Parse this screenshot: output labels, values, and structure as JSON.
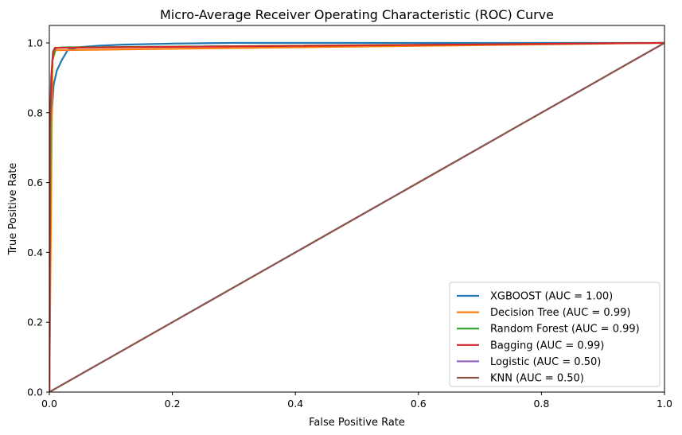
{
  "chart_data": {
    "type": "line",
    "title": "Micro-Average Receiver Operating Characteristic (ROC) Curve",
    "xlabel": "False Positive Rate",
    "ylabel": "True Positive Rate",
    "xlim": [
      0,
      1
    ],
    "ylim": [
      0,
      1.05
    ],
    "xticks": [
      0.0,
      0.2,
      0.4,
      0.6,
      0.8,
      1.0
    ],
    "yticks": [
      0.0,
      0.2,
      0.4,
      0.6,
      0.8,
      1.0
    ],
    "xtick_labels": [
      "0.0",
      "0.2",
      "0.4",
      "0.6",
      "0.8",
      "1.0"
    ],
    "ytick_labels": [
      "0.0",
      "0.2",
      "0.4",
      "0.6",
      "0.8",
      "1.0"
    ],
    "grid": false,
    "legend_position": "bottom-right",
    "series": [
      {
        "name": "XGBOOST (AUC = 1.00)",
        "color": "#1f77b4",
        "x": [
          0,
          0.001,
          0.002,
          0.004,
          0.007,
          0.012,
          0.02,
          0.03,
          0.05,
          0.08,
          0.12,
          0.2,
          0.3,
          0.5,
          1.0
        ],
        "y": [
          0,
          0.25,
          0.6,
          0.8,
          0.88,
          0.92,
          0.95,
          0.98,
          0.988,
          0.992,
          0.995,
          0.998,
          1.0,
          1.0,
          1.0
        ]
      },
      {
        "name": "Decision Tree (AUC = 0.99)",
        "color": "#ff7f0e",
        "x": [
          0,
          0.005,
          0.01,
          1.0
        ],
        "y": [
          0,
          0.95,
          0.979,
          1.0
        ]
      },
      {
        "name": "Random Forest (AUC = 0.99)",
        "color": "#2ca02c",
        "x": [
          0,
          0.002,
          0.005,
          0.01,
          0.02,
          1.0
        ],
        "y": [
          0,
          0.8,
          0.95,
          0.985,
          0.987,
          1.0
        ]
      },
      {
        "name": "Bagging (AUC = 0.99)",
        "color": "#d62728",
        "x": [
          0,
          0.001,
          0.003,
          0.006,
          0.009,
          1.0
        ],
        "y": [
          0,
          0.75,
          0.9,
          0.975,
          0.986,
          1.0
        ]
      },
      {
        "name": "Logistic (AUC = 0.50)",
        "color": "#9467bd",
        "x": [
          0,
          1
        ],
        "y": [
          0,
          1
        ]
      },
      {
        "name": "KNN (AUC = 0.50)",
        "color": "#8c564b",
        "x": [
          0,
          1
        ],
        "y": [
          0,
          1
        ]
      }
    ]
  }
}
